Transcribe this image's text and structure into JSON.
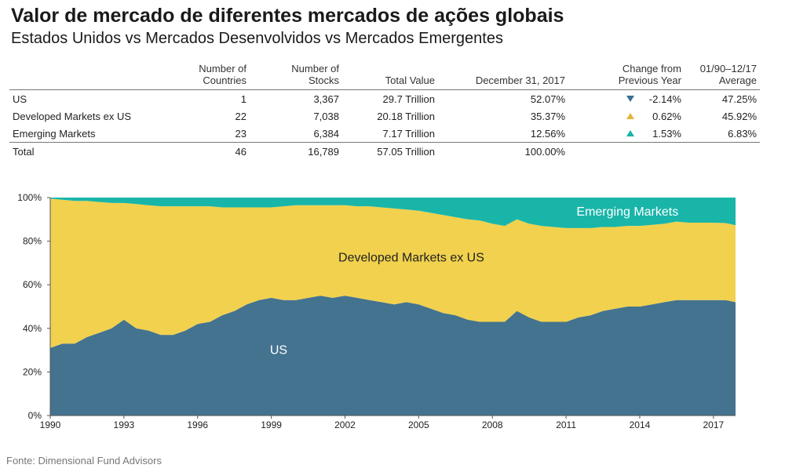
{
  "title": "Valor de mercado de diferentes mercados de ações globais",
  "subtitle": "Estados Unidos vs Mercados Desenvolvidos vs Mercados Emergentes",
  "table": {
    "headers": {
      "countries": [
        "Number of",
        "Countries"
      ],
      "stocks": [
        "Number of",
        "Stocks"
      ],
      "total_value": "Total Value",
      "dec": "December 31, 2017",
      "change": [
        "Change from",
        "Previous Year"
      ],
      "average": [
        "01/90–12/17",
        "Average"
      ]
    },
    "rows": [
      {
        "name": "US",
        "countries": "1",
        "stocks": "3,367",
        "total_value": "29.7 Trillion",
        "dec": "52.07%",
        "change_dir": "down",
        "change": "-2.14%",
        "average": "47.25%"
      },
      {
        "name": "Developed Markets ex US",
        "countries": "22",
        "stocks": "7,038",
        "total_value": "20.18 Trillion",
        "dec": "35.37%",
        "change_dir": "up",
        "change": "0.62%",
        "average": "45.92%"
      },
      {
        "name": "Emerging Markets",
        "countries": "23",
        "stocks": "6,384",
        "total_value": "7.17 Trillion",
        "dec": "12.56%",
        "change_dir": "up",
        "change": "1.53%",
        "average": "6.83%"
      }
    ],
    "total": {
      "name": "Total",
      "countries": "46",
      "stocks": "16,789",
      "total_value": "57.05 Trillion",
      "dec": "100.00%"
    }
  },
  "chart_data": {
    "type": "area",
    "stacked": true,
    "x": [
      1990,
      1990.5,
      1991,
      1991.5,
      1992,
      1992.5,
      1993,
      1993.5,
      1994,
      1994.5,
      1995,
      1995.5,
      1996,
      1996.5,
      1997,
      1997.5,
      1998,
      1998.5,
      1999,
      1999.5,
      2000,
      2000.5,
      2001,
      2001.5,
      2002,
      2002.5,
      2003,
      2003.5,
      2004,
      2004.5,
      2005,
      2005.5,
      2006,
      2006.5,
      2007,
      2007.5,
      2008,
      2008.5,
      2009,
      2009.5,
      2010,
      2010.5,
      2011,
      2011.5,
      2012,
      2012.5,
      2013,
      2013.5,
      2014,
      2014.5,
      2015,
      2015.5,
      2016,
      2016.5,
      2017,
      2017.5,
      2017.9
    ],
    "series": [
      {
        "name": "US",
        "color": "#44738f",
        "values": [
          31,
          33,
          33,
          36,
          38,
          40,
          44,
          40,
          39,
          37,
          37,
          39,
          42,
          43,
          46,
          48,
          51,
          53,
          54,
          53,
          53,
          54,
          55,
          54,
          55,
          54,
          53,
          52,
          51,
          52,
          51,
          49,
          47,
          46,
          44,
          43,
          43,
          43,
          48,
          45,
          43,
          43,
          43,
          45,
          46,
          48,
          49,
          50,
          50,
          51,
          52,
          53,
          53,
          53,
          53,
          53,
          52
        ]
      },
      {
        "name": "Developed Markets ex US",
        "color": "#f1d14e",
        "values": [
          68.5,
          66,
          65.5,
          62.5,
          60,
          57.5,
          53.5,
          57,
          57.5,
          59,
          59,
          57,
          54,
          53,
          49.5,
          47.5,
          44.5,
          42.5,
          41.5,
          43,
          43.5,
          42.5,
          41.5,
          42.5,
          41.5,
          42,
          43,
          43.5,
          44,
          42.5,
          43,
          44,
          45,
          45,
          46,
          46.5,
          45,
          44,
          42,
          43,
          44,
          43.5,
          43,
          41,
          40,
          38.5,
          37.5,
          37,
          37,
          36.5,
          36,
          36,
          35.5,
          35.5,
          35.5,
          35.3,
          35.3
        ]
      },
      {
        "name": "Emerging Markets",
        "color": "#19b5a9",
        "values": [
          0.5,
          1,
          1.5,
          1.5,
          2,
          2.5,
          2.5,
          3,
          3.5,
          4,
          4,
          4,
          4,
          4,
          4.5,
          4.5,
          4.5,
          4.5,
          4.5,
          4,
          3.5,
          3.5,
          3.5,
          3.5,
          3.5,
          4,
          4,
          4.5,
          5,
          5.5,
          6,
          7,
          8,
          9,
          10,
          10.5,
          12,
          13,
          10,
          12,
          13,
          13.5,
          14,
          14,
          14,
          13.5,
          13.5,
          13,
          13,
          12.5,
          12,
          11,
          11.5,
          11.5,
          11.5,
          11.7,
          12.7
        ]
      }
    ],
    "ylim": [
      0,
      100
    ],
    "yticks": [
      "0%",
      "20%",
      "40%",
      "60%",
      "80%",
      "100%"
    ],
    "xticks": [
      "1990",
      "1993",
      "1996",
      "1999",
      "2002",
      "2005",
      "2008",
      "2011",
      "2014",
      "2017"
    ],
    "area_labels": [
      "US",
      "Developed Markets ex US",
      "Emerging Markets"
    ],
    "grid": false
  },
  "source": "Fonte: Dimensional Fund Advisors"
}
